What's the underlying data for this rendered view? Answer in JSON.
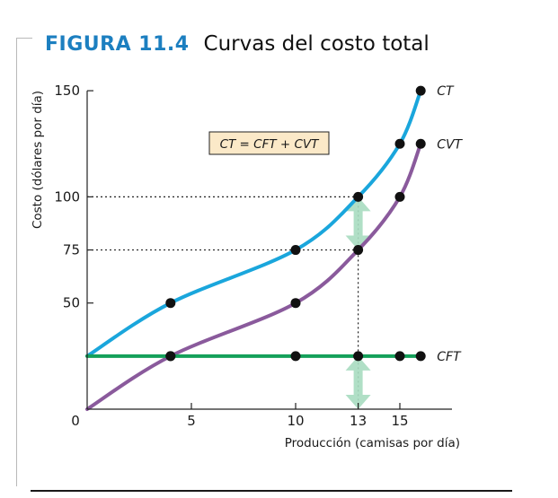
{
  "figure": {
    "label": "FIGURA 11.4",
    "title": "Curvas del costo total"
  },
  "chart_data": {
    "type": "line",
    "xlabel": "Producción (camisas por día)",
    "ylabel": "Costo (dólares por día)",
    "x_ticks": [
      0,
      5,
      10,
      13,
      15
    ],
    "y_ticks": [
      50,
      75,
      100,
      150
    ],
    "xlim": [
      0,
      17.5
    ],
    "ylim": [
      0,
      150
    ],
    "origin_label": "0",
    "grid": false,
    "legend_box": "CT = CFT + CVT",
    "series": [
      {
        "name": "CT",
        "color": "#1aa6dc",
        "points": [
          [
            0,
            25
          ],
          [
            4,
            50
          ],
          [
            10,
            75
          ],
          [
            13,
            100
          ],
          [
            15,
            125
          ],
          [
            16,
            150
          ]
        ],
        "markers": [
          [
            4,
            50
          ],
          [
            10,
            75
          ],
          [
            13,
            100
          ],
          [
            15,
            125
          ],
          [
            16,
            150
          ]
        ]
      },
      {
        "name": "CVT",
        "color": "#8a5a9c",
        "points": [
          [
            0,
            0
          ],
          [
            4,
            25
          ],
          [
            10,
            50
          ],
          [
            13,
            75
          ],
          [
            15,
            100
          ],
          [
            16,
            125
          ]
        ],
        "markers": [
          [
            4,
            25
          ],
          [
            10,
            50
          ],
          [
            13,
            75
          ],
          [
            15,
            100
          ],
          [
            16,
            125
          ]
        ]
      },
      {
        "name": "CFT",
        "color": "#14a05a",
        "points": [
          [
            0,
            25
          ],
          [
            16,
            25
          ]
        ],
        "markers": [
          [
            4,
            25
          ],
          [
            10,
            25
          ],
          [
            13,
            25
          ],
          [
            15,
            25
          ],
          [
            16,
            25
          ]
        ]
      }
    ],
    "guides": [
      {
        "from": [
          0,
          100
        ],
        "to": [
          13,
          100
        ]
      },
      {
        "from": [
          0,
          75
        ],
        "to": [
          13,
          75
        ]
      },
      {
        "from": [
          13,
          100
        ],
        "to": [
          13,
          0
        ]
      }
    ],
    "arrows": [
      {
        "x": 13,
        "y_from": 100,
        "y_to": 75
      },
      {
        "x": 13,
        "y_from": 25,
        "y_to": 0
      }
    ],
    "marker_color": "#111111"
  }
}
